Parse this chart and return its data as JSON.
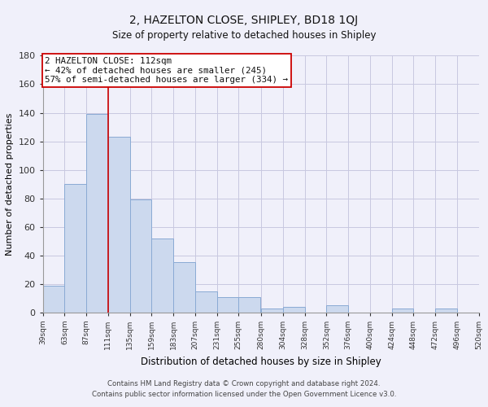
{
  "title": "2, HAZELTON CLOSE, SHIPLEY, BD18 1QJ",
  "subtitle": "Size of property relative to detached houses in Shipley",
  "xlabel": "Distribution of detached houses by size in Shipley",
  "ylabel": "Number of detached properties",
  "bar_color": "#ccd9ee",
  "bar_edge_color": "#8aaad4",
  "bar_left_edges": [
    39,
    63,
    87,
    111,
    135,
    159,
    183,
    207,
    231,
    255,
    280,
    304,
    328,
    352,
    376,
    400,
    424,
    448,
    472,
    496
  ],
  "bar_heights": [
    19,
    90,
    139,
    123,
    79,
    52,
    35,
    15,
    11,
    11,
    3,
    4,
    0,
    5,
    0,
    0,
    3,
    0,
    3,
    0
  ],
  "bin_width": 24,
  "x_tick_labels": [
    "39sqm",
    "63sqm",
    "87sqm",
    "111sqm",
    "135sqm",
    "159sqm",
    "183sqm",
    "207sqm",
    "231sqm",
    "255sqm",
    "280sqm",
    "304sqm",
    "328sqm",
    "352sqm",
    "376sqm",
    "400sqm",
    "424sqm",
    "448sqm",
    "472sqm",
    "496sqm",
    "520sqm"
  ],
  "ylim": [
    0,
    180
  ],
  "yticks": [
    0,
    20,
    40,
    60,
    80,
    100,
    120,
    140,
    160,
    180
  ],
  "property_line_x": 111,
  "property_line_color": "#cc0000",
  "annotation_text_line1": "2 HAZELTON CLOSE: 112sqm",
  "annotation_text_line2": "← 42% of detached houses are smaller (245)",
  "annotation_text_line3": "57% of semi-detached houses are larger (334) →",
  "annotation_box_color": "#ffffff",
  "annotation_box_edge_color": "#cc0000",
  "footnote1": "Contains HM Land Registry data © Crown copyright and database right 2024.",
  "footnote2": "Contains public sector information licensed under the Open Government Licence v3.0.",
  "bg_color": "#f0f0fa",
  "grid_color": "#c8c8e0"
}
